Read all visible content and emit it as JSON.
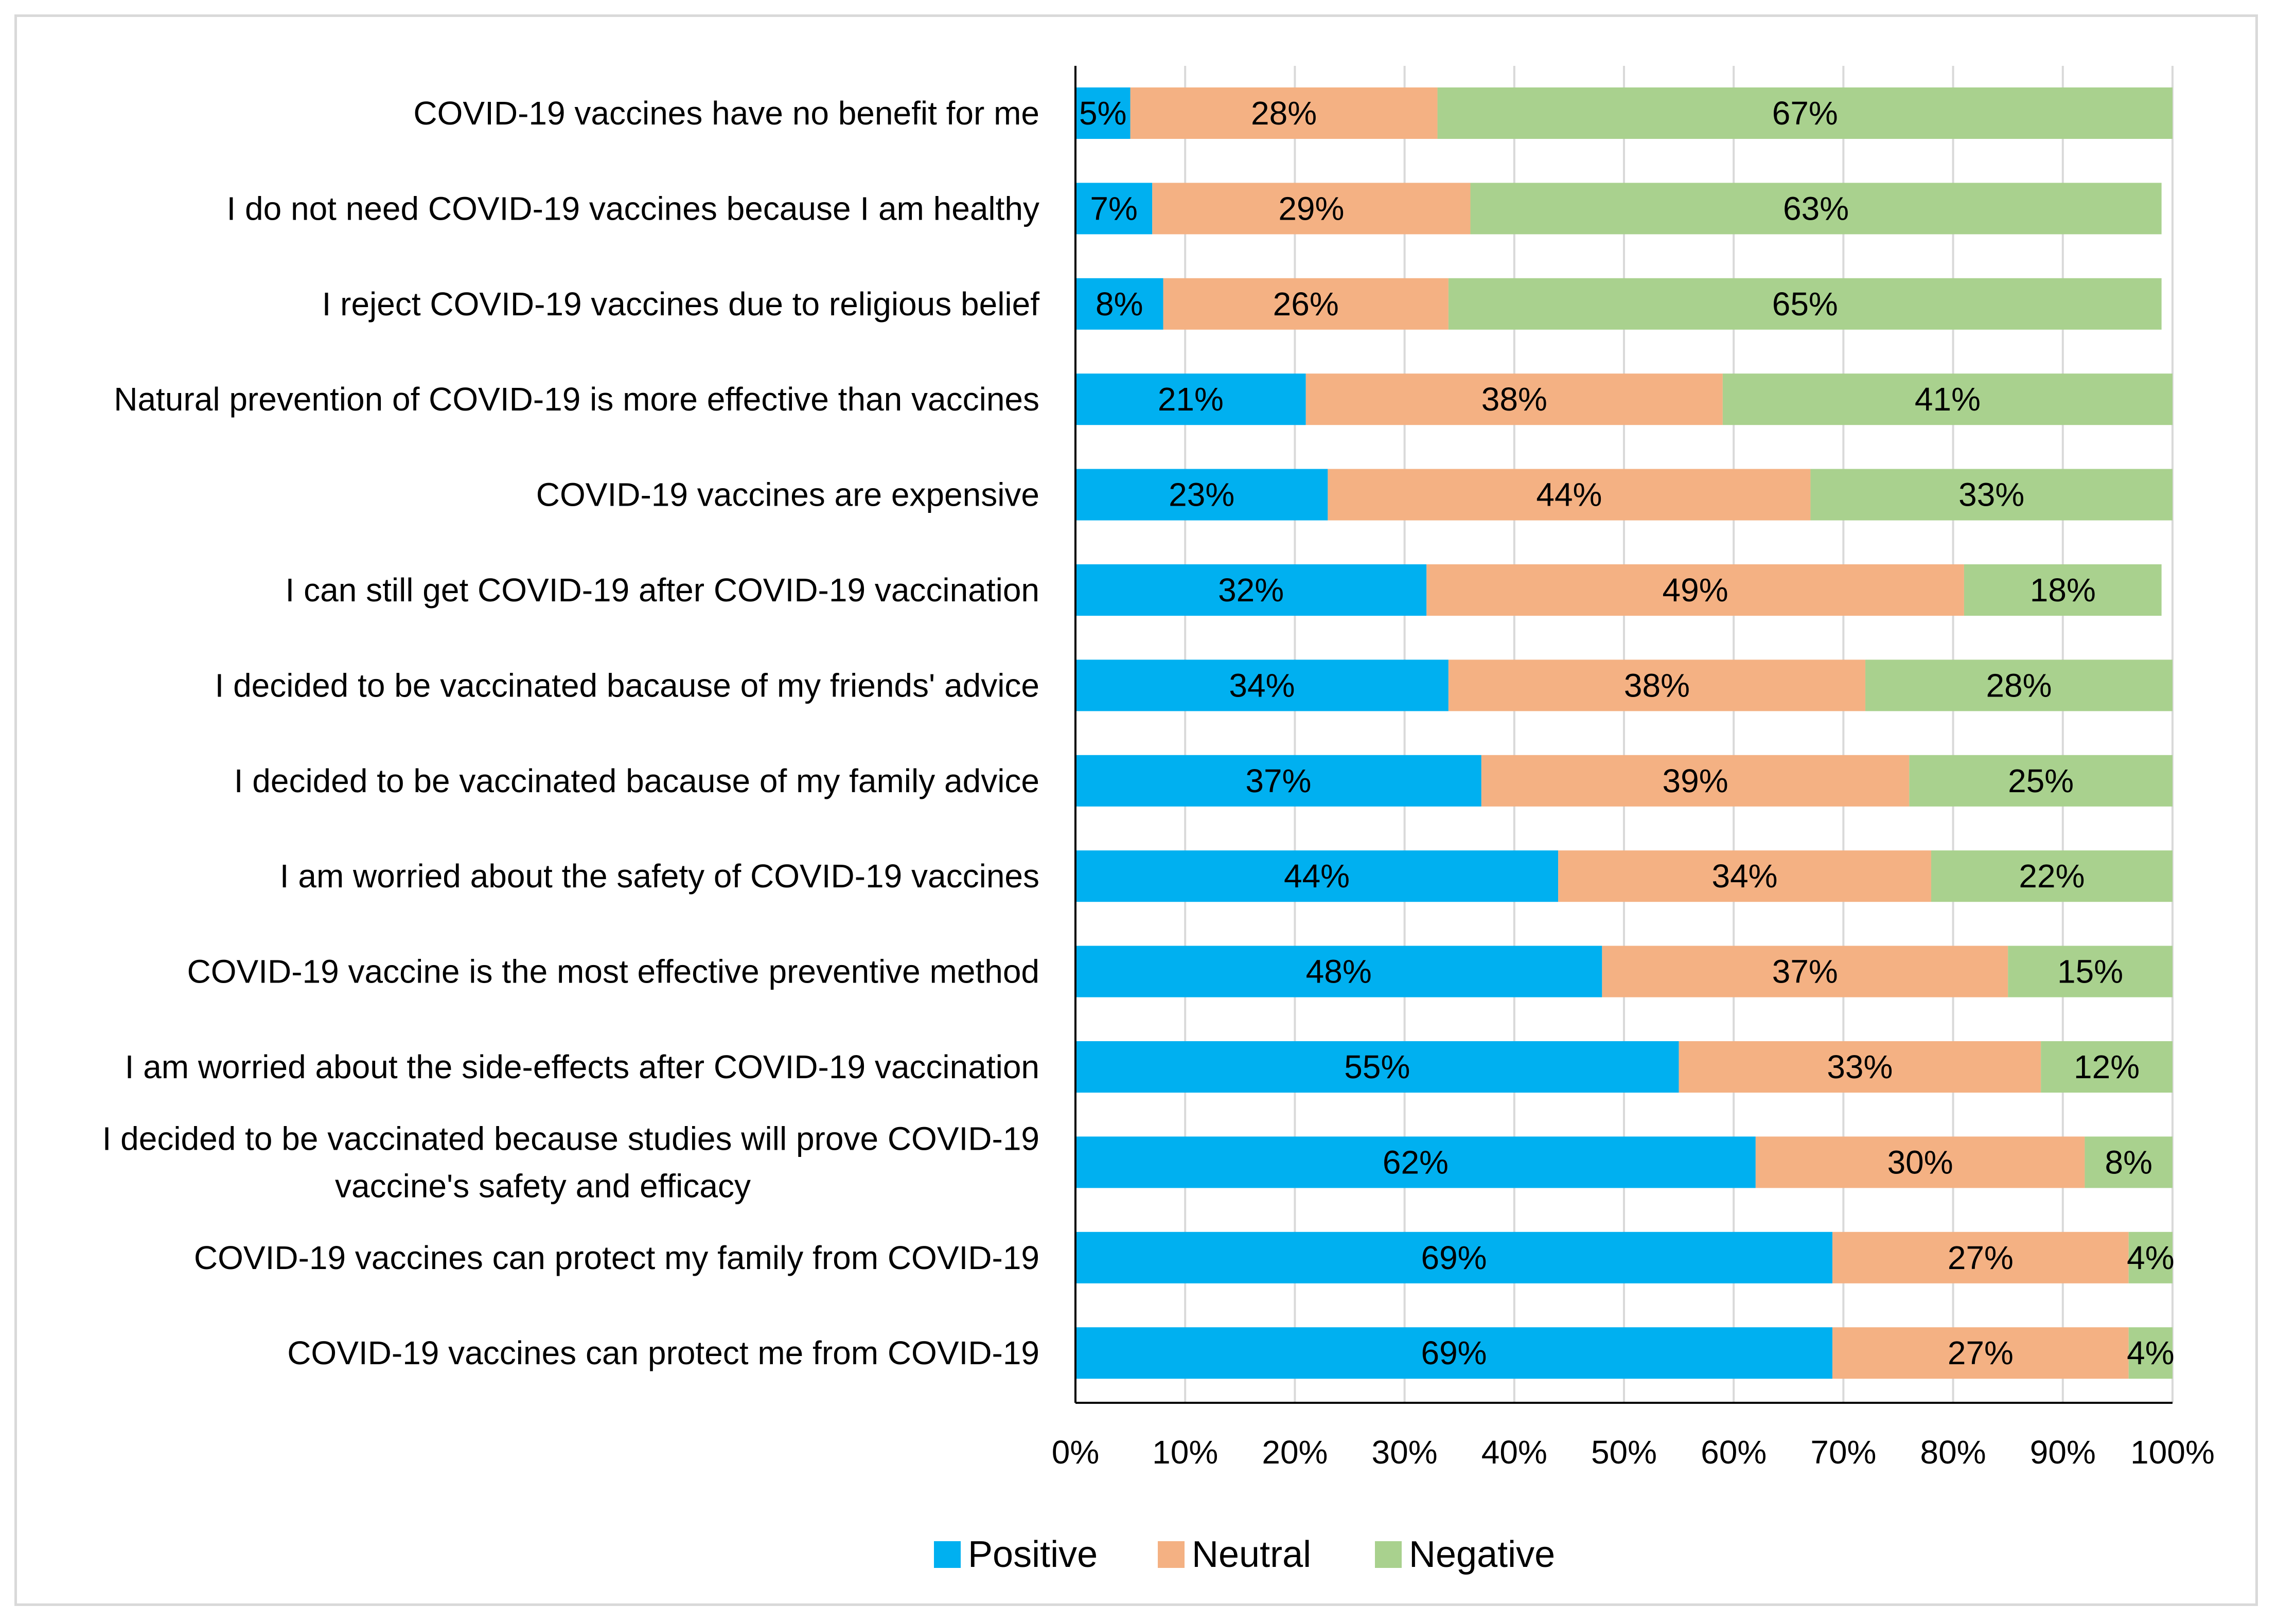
{
  "chart_data": {
    "type": "bar",
    "orientation": "horizontal",
    "stacked": true,
    "title": "",
    "xlabel": "",
    "ylabel": "",
    "xlim": [
      0,
      100
    ],
    "x_ticks": [
      "0%",
      "10%",
      "20%",
      "30%",
      "40%",
      "50%",
      "60%",
      "70%",
      "80%",
      "90%",
      "100%"
    ],
    "grid": true,
    "legend_position": "bottom",
    "categories": [
      "COVID-19 vaccines have no benefit for me",
      "I do not need COVID-19 vaccines because I am healthy",
      "I reject COVID-19 vaccines due to religious belief",
      "Natural prevention of COVID-19 is more effective than vaccines",
      "COVID-19 vaccines are expensive",
      "I can still get COVID-19 after COVID-19 vaccination",
      "I decided to be vaccinated bacause of my friends' advice",
      "I decided to be vaccinated bacause of my family advice",
      "I am worried about the safety of COVID-19 vaccines",
      "COVID-19 vaccine is the most effective preventive method",
      "I am worried about the side-effects after COVID-19 vaccination",
      "I decided to be vaccinated because studies will prove COVID-19 vaccine's safety and efficacy",
      "COVID-19 vaccines can protect my family from COVID-19",
      "COVID-19 vaccines can protect me from COVID-19"
    ],
    "category_lines": [
      [
        "COVID-19 vaccines have no benefit for me"
      ],
      [
        "I do not need COVID-19 vaccines because I am healthy"
      ],
      [
        "I reject COVID-19 vaccines due to religious belief"
      ],
      [
        "Natural prevention of COVID-19 is more effective than vaccines"
      ],
      [
        "COVID-19 vaccines are expensive"
      ],
      [
        "I can still get COVID-19 after COVID-19 vaccination"
      ],
      [
        "I decided to be vaccinated bacause of my friends' advice"
      ],
      [
        "I decided to be vaccinated bacause of my family advice"
      ],
      [
        "I am worried about the safety of COVID-19 vaccines"
      ],
      [
        "COVID-19 vaccine is the most effective preventive method"
      ],
      [
        "I am worried about the side-effects after COVID-19 vaccination"
      ],
      [
        "I decided to be vaccinated because studies will prove COVID-19",
        "vaccine's safety and efficacy"
      ],
      [
        "COVID-19 vaccines can protect my family from COVID-19"
      ],
      [
        "COVID-19 vaccines can protect me from COVID-19"
      ]
    ],
    "series": [
      {
        "name": "Positive",
        "color": "#00b0f0",
        "values": [
          5,
          7,
          8,
          21,
          23,
          32,
          34,
          37,
          44,
          48,
          55,
          62,
          69,
          69
        ],
        "labels": [
          "5%",
          "7%",
          "8%",
          "21%",
          "23%",
          "32%",
          "34%",
          "37%",
          "44%",
          "48%",
          "55%",
          "62%",
          "69%",
          "69%"
        ]
      },
      {
        "name": "Neutral",
        "color": "#f4b183",
        "values": [
          28,
          29,
          26,
          38,
          44,
          49,
          38,
          39,
          34,
          37,
          33,
          30,
          27,
          27
        ],
        "labels": [
          "28%",
          "29%",
          "26%",
          "38%",
          "44%",
          "49%",
          "38%",
          "39%",
          "34%",
          "37%",
          "33%",
          "30%",
          "27%",
          "27%"
        ]
      },
      {
        "name": "Negative",
        "color": "#a9d18e",
        "values": [
          67,
          63,
          65,
          41,
          33,
          18,
          28,
          25,
          22,
          15,
          12,
          8,
          4,
          4
        ],
        "labels": [
          "67%",
          "63%",
          "65%",
          "41%",
          "33%",
          "18%",
          "28%",
          "25%",
          "22%",
          "15%",
          "12%",
          "8%",
          "4%",
          "4%"
        ]
      }
    ],
    "gridline_color": "#d9d9d9",
    "axis_color": "#000000"
  }
}
